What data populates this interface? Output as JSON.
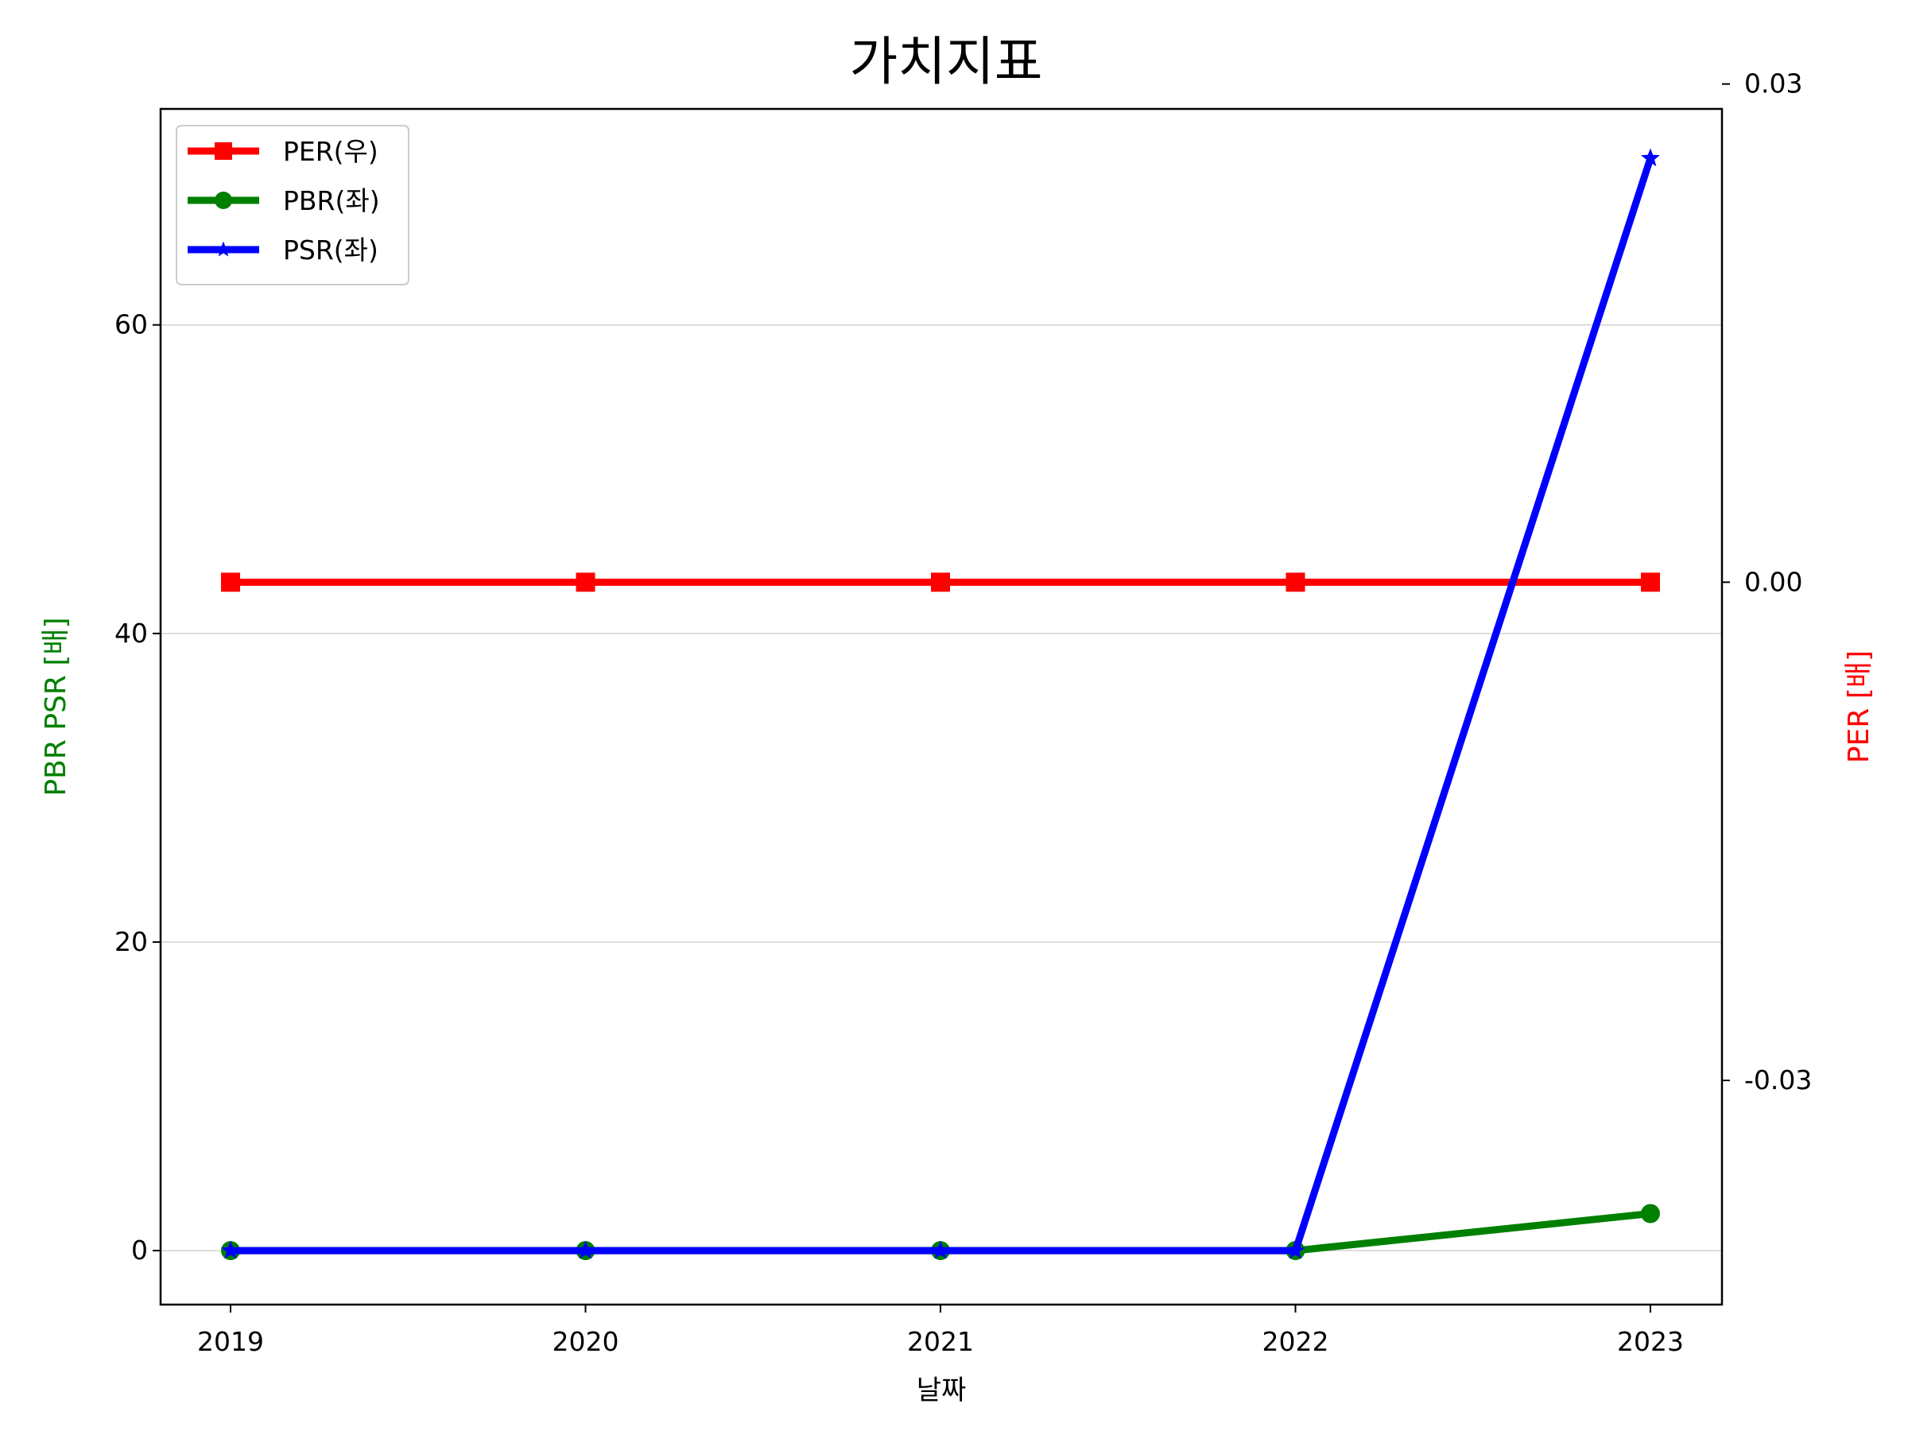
{
  "chart_data": {
    "type": "line",
    "title": "가치지표",
    "xlabel": "날짜",
    "ylabel_left": "PBR PSR [배]",
    "ylabel_right": "PER [배]",
    "x": [
      "2019",
      "2020",
      "2021",
      "2022",
      "2023"
    ],
    "ylim_left": [
      -3.5,
      74
    ],
    "yticks_left": [
      "0",
      "20",
      "40",
      "60"
    ],
    "ylim_right": [
      -0.0435,
      0.0285
    ],
    "yticks_right": [
      "0.03",
      "0.00",
      "-0.03"
    ],
    "grid": "horizontal",
    "legend_position": "top-left",
    "series": [
      {
        "name": "PER(우)",
        "axis": "right",
        "color": "#ff0000",
        "marker": "square",
        "values": [
          0,
          0,
          0,
          0,
          0
        ]
      },
      {
        "name": "PBR(좌)",
        "axis": "left",
        "color": "#008000",
        "marker": "circle",
        "values": [
          0,
          0,
          0,
          0,
          2.4
        ]
      },
      {
        "name": "PSR(좌)",
        "axis": "left",
        "color": "#0000ff",
        "marker": "star",
        "values": [
          0,
          0,
          0,
          0,
          70.8
        ]
      }
    ]
  }
}
